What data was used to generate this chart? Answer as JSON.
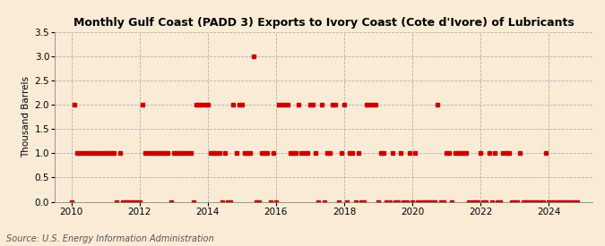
{
  "title": "Monthly Gulf Coast (PADD 3) Exports to Ivory Coast (Cote d'Ivore) of Lubricants",
  "ylabel": "Thousand Barrels",
  "source": "Source: U.S. Energy Information Administration",
  "background_color": "#faebd7",
  "line_color": "#cc0000",
  "marker": "s",
  "markersize": 2.5,
  "ylim": [
    0.0,
    3.5
  ],
  "yticks": [
    0.0,
    0.5,
    1.0,
    1.5,
    2.0,
    2.5,
    3.0,
    3.5
  ],
  "xlim_start": 2009.5,
  "xlim_end": 2025.3,
  "xticks": [
    2010,
    2012,
    2014,
    2016,
    2018,
    2020,
    2022,
    2024
  ],
  "data": [
    [
      2010.0,
      0
    ],
    [
      2010.083,
      2
    ],
    [
      2010.167,
      1
    ],
    [
      2010.25,
      1
    ],
    [
      2010.333,
      1
    ],
    [
      2010.417,
      1
    ],
    [
      2010.5,
      1
    ],
    [
      2010.583,
      1
    ],
    [
      2010.667,
      1
    ],
    [
      2010.75,
      1
    ],
    [
      2010.833,
      1
    ],
    [
      2010.917,
      1
    ],
    [
      2011.0,
      1
    ],
    [
      2011.083,
      1
    ],
    [
      2011.167,
      1
    ],
    [
      2011.25,
      1
    ],
    [
      2011.333,
      0
    ],
    [
      2011.417,
      1
    ],
    [
      2011.5,
      0
    ],
    [
      2011.583,
      0
    ],
    [
      2011.667,
      0
    ],
    [
      2011.75,
      0
    ],
    [
      2011.833,
      0
    ],
    [
      2011.917,
      0
    ],
    [
      2012.0,
      0
    ],
    [
      2012.083,
      2
    ],
    [
      2012.167,
      1
    ],
    [
      2012.25,
      1
    ],
    [
      2012.333,
      1
    ],
    [
      2012.417,
      1
    ],
    [
      2012.5,
      1
    ],
    [
      2012.583,
      1
    ],
    [
      2012.667,
      1
    ],
    [
      2012.75,
      1
    ],
    [
      2012.833,
      1
    ],
    [
      2012.917,
      0
    ],
    [
      2013.0,
      1
    ],
    [
      2013.083,
      1
    ],
    [
      2013.167,
      1
    ],
    [
      2013.25,
      1
    ],
    [
      2013.333,
      1
    ],
    [
      2013.417,
      1
    ],
    [
      2013.5,
      1
    ],
    [
      2013.583,
      0
    ],
    [
      2013.667,
      2
    ],
    [
      2013.75,
      2
    ],
    [
      2013.833,
      2
    ],
    [
      2013.917,
      2
    ],
    [
      2014.0,
      2
    ],
    [
      2014.083,
      1
    ],
    [
      2014.167,
      1
    ],
    [
      2014.25,
      1
    ],
    [
      2014.333,
      1
    ],
    [
      2014.417,
      0
    ],
    [
      2014.5,
      1
    ],
    [
      2014.583,
      0
    ],
    [
      2014.667,
      0
    ],
    [
      2014.75,
      2
    ],
    [
      2014.833,
      1
    ],
    [
      2014.917,
      2
    ],
    [
      2015.0,
      2
    ],
    [
      2015.083,
      1
    ],
    [
      2015.167,
      1
    ],
    [
      2015.25,
      1
    ],
    [
      2015.333,
      3
    ],
    [
      2015.417,
      0
    ],
    [
      2015.5,
      0
    ],
    [
      2015.583,
      1
    ],
    [
      2015.667,
      1
    ],
    [
      2015.75,
      1
    ],
    [
      2015.833,
      0
    ],
    [
      2015.917,
      1
    ],
    [
      2016.0,
      0
    ],
    [
      2016.083,
      2
    ],
    [
      2016.167,
      2
    ],
    [
      2016.25,
      2
    ],
    [
      2016.333,
      2
    ],
    [
      2016.417,
      1
    ],
    [
      2016.5,
      1
    ],
    [
      2016.583,
      1
    ],
    [
      2016.667,
      2
    ],
    [
      2016.75,
      1
    ],
    [
      2016.833,
      1
    ],
    [
      2016.917,
      1
    ],
    [
      2017.0,
      2
    ],
    [
      2017.083,
      2
    ],
    [
      2017.167,
      1
    ],
    [
      2017.25,
      0
    ],
    [
      2017.333,
      2
    ],
    [
      2017.417,
      0
    ],
    [
      2017.5,
      1
    ],
    [
      2017.583,
      1
    ],
    [
      2017.667,
      2
    ],
    [
      2017.75,
      2
    ],
    [
      2017.833,
      0
    ],
    [
      2017.917,
      1
    ],
    [
      2018.0,
      2
    ],
    [
      2018.083,
      0
    ],
    [
      2018.167,
      1
    ],
    [
      2018.25,
      1
    ],
    [
      2018.333,
      0
    ],
    [
      2018.417,
      1
    ],
    [
      2018.5,
      0
    ],
    [
      2018.583,
      0
    ],
    [
      2018.667,
      2
    ],
    [
      2018.75,
      2
    ],
    [
      2018.833,
      2
    ],
    [
      2018.917,
      2
    ],
    [
      2019.0,
      0
    ],
    [
      2019.083,
      1
    ],
    [
      2019.167,
      1
    ],
    [
      2019.25,
      0
    ],
    [
      2019.333,
      0
    ],
    [
      2019.417,
      1
    ],
    [
      2019.5,
      0
    ],
    [
      2019.583,
      0
    ],
    [
      2019.667,
      1
    ],
    [
      2019.75,
      0
    ],
    [
      2019.833,
      0
    ],
    [
      2019.917,
      1
    ],
    [
      2020.0,
      0
    ],
    [
      2020.083,
      1
    ],
    [
      2020.167,
      0
    ],
    [
      2020.25,
      0
    ],
    [
      2020.333,
      0
    ],
    [
      2020.417,
      0
    ],
    [
      2020.5,
      0
    ],
    [
      2020.583,
      0
    ],
    [
      2020.667,
      0
    ],
    [
      2020.75,
      2
    ],
    [
      2020.833,
      0
    ],
    [
      2020.917,
      0
    ],
    [
      2021.0,
      1
    ],
    [
      2021.083,
      1
    ],
    [
      2021.167,
      0
    ],
    [
      2021.25,
      1
    ],
    [
      2021.333,
      1
    ],
    [
      2021.417,
      1
    ],
    [
      2021.5,
      1
    ],
    [
      2021.583,
      1
    ],
    [
      2021.667,
      0
    ],
    [
      2021.75,
      0
    ],
    [
      2021.833,
      0
    ],
    [
      2021.917,
      0
    ],
    [
      2022.0,
      1
    ],
    [
      2022.083,
      0
    ],
    [
      2022.167,
      0
    ],
    [
      2022.25,
      1
    ],
    [
      2022.333,
      0
    ],
    [
      2022.417,
      1
    ],
    [
      2022.5,
      0
    ],
    [
      2022.583,
      0
    ],
    [
      2022.667,
      1
    ],
    [
      2022.75,
      1
    ],
    [
      2022.833,
      1
    ],
    [
      2022.917,
      0
    ],
    [
      2023.0,
      0
    ],
    [
      2023.083,
      0
    ],
    [
      2023.167,
      1
    ],
    [
      2023.25,
      0
    ],
    [
      2023.333,
      0
    ],
    [
      2023.417,
      0
    ],
    [
      2023.5,
      0
    ],
    [
      2023.583,
      0
    ],
    [
      2023.667,
      0
    ],
    [
      2023.75,
      0
    ],
    [
      2023.833,
      0
    ],
    [
      2023.917,
      1
    ],
    [
      2024.0,
      0
    ],
    [
      2024.083,
      0
    ],
    [
      2024.167,
      0
    ],
    [
      2024.25,
      0
    ],
    [
      2024.333,
      0
    ],
    [
      2024.417,
      0
    ],
    [
      2024.5,
      0
    ],
    [
      2024.583,
      0
    ],
    [
      2024.667,
      0
    ],
    [
      2024.75,
      0
    ],
    [
      2024.833,
      0
    ]
  ]
}
